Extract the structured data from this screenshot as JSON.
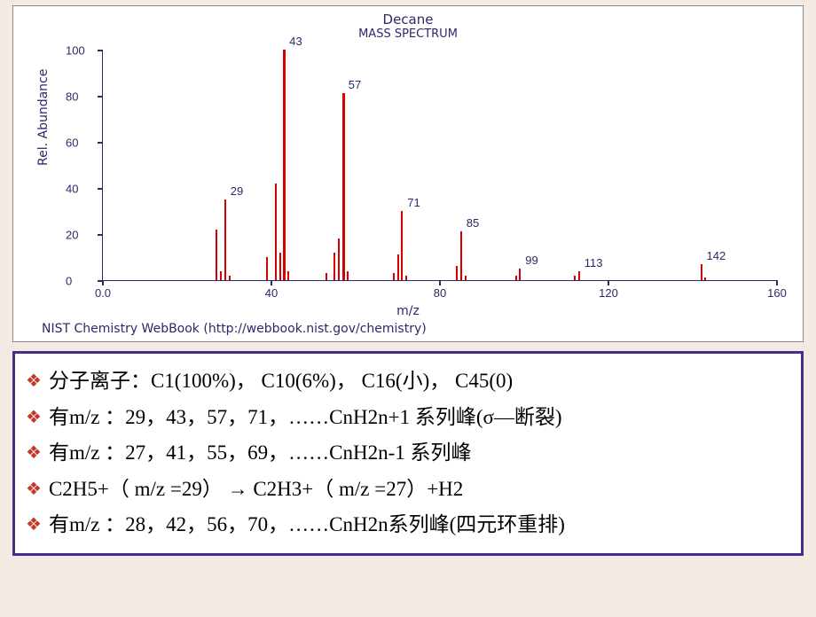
{
  "chart": {
    "title": "Decane",
    "subtitle": "MASS SPECTRUM",
    "ylabel": "Rel. Abundance",
    "xlabel": "m/z",
    "attribution": "NIST Chemistry WebBook (http://webbook.nist.gov/chemistry)",
    "xlim": [
      0,
      160
    ],
    "ylim": [
      0,
      100
    ],
    "yticks": [
      0.0,
      20,
      40,
      60,
      80,
      100
    ],
    "xticks": [
      "0.0",
      "40",
      "80",
      "120",
      "160"
    ],
    "xtick_values": [
      0,
      40,
      80,
      120,
      160
    ],
    "axis_color": "#2a2a6a",
    "peak_color": "#d40000",
    "background_color": "#ffffff",
    "peaks": [
      {
        "mz": 27,
        "h": 22
      },
      {
        "mz": 28,
        "h": 4
      },
      {
        "mz": 29,
        "h": 35,
        "label": "29"
      },
      {
        "mz": 30,
        "h": 2
      },
      {
        "mz": 39,
        "h": 10
      },
      {
        "mz": 41,
        "h": 42
      },
      {
        "mz": 42,
        "h": 12
      },
      {
        "mz": 43,
        "h": 100,
        "label": "43"
      },
      {
        "mz": 44,
        "h": 4
      },
      {
        "mz": 53,
        "h": 3
      },
      {
        "mz": 55,
        "h": 12
      },
      {
        "mz": 56,
        "h": 18
      },
      {
        "mz": 57,
        "h": 81,
        "label": "57"
      },
      {
        "mz": 58,
        "h": 4
      },
      {
        "mz": 69,
        "h": 3
      },
      {
        "mz": 70,
        "h": 11
      },
      {
        "mz": 71,
        "h": 30,
        "label": "71"
      },
      {
        "mz": 72,
        "h": 2
      },
      {
        "mz": 84,
        "h": 6
      },
      {
        "mz": 85,
        "h": 21,
        "label": "85"
      },
      {
        "mz": 86,
        "h": 2
      },
      {
        "mz": 98,
        "h": 2
      },
      {
        "mz": 99,
        "h": 5,
        "label": "99"
      },
      {
        "mz": 112,
        "h": 2
      },
      {
        "mz": 113,
        "h": 4,
        "label": "113"
      },
      {
        "mz": 142,
        "h": 7,
        "label": "142"
      },
      {
        "mz": 143,
        "h": 1
      }
    ]
  },
  "box": {
    "border_color": "#4a2a8a",
    "bullet_color": "#c0392b",
    "bg": "#ffffff",
    "lines": [
      "分子离子：C1(100%)， C10(6%)， C16(小)， C45(0)",
      "有m/z ：29，43，57，71，……CnH2n+1  系列峰(σ—断裂)",
      "有m/z ：27，41，55，69，……CnH2n-1  系列峰",
      "       C2H5+（ m/z =29） → C2H3+（ m/z =27）+H2",
      "有m/z ：28，42，56，70，……CnH2n系列峰(四元环重排)"
    ]
  }
}
